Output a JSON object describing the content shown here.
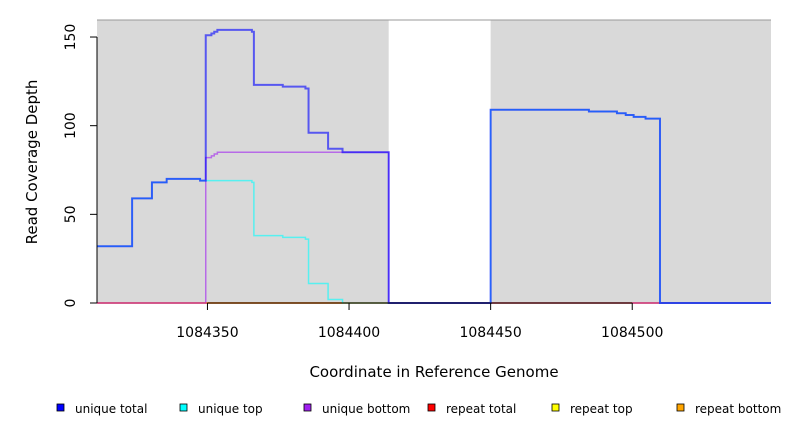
{
  "chart_data": {
    "type": "line",
    "step": true,
    "title": "",
    "xlabel": "Coordinate in Reference Genome",
    "ylabel": "Read Coverage Depth",
    "xlim": [
      1084311,
      1084549
    ],
    "ylim": [
      0,
      159.6
    ],
    "xticks": [
      1084350,
      1084400,
      1084450,
      1084500
    ],
    "yticks": [
      0,
      50,
      100,
      150
    ],
    "shaded_regions": [
      [
        1084311,
        1084414
      ],
      [
        1084450,
        1084549
      ]
    ],
    "shade_color": "#d9d9d9",
    "legend_position": "bottom",
    "series": [
      {
        "name": "unique total",
        "color": "#0000ff",
        "x": [
          1084311,
          1084323.4,
          1084330.4,
          1084335.6,
          1084347.4,
          1084349.4,
          1084351.4,
          1084352.4,
          1084353.5,
          1084365.7,
          1084366.4,
          1084376.6,
          1084384.6,
          1084385.7,
          1084392.6,
          1084397.7,
          1084414,
          1084450,
          1084484.7,
          1084494.6,
          1084497.7,
          1084500.5,
          1084504.7,
          1084509.8
        ],
        "y": [
          32,
          59,
          68,
          70,
          69,
          151,
          152,
          153,
          154,
          153,
          123,
          122,
          121,
          96,
          87,
          85,
          0,
          109,
          108,
          107,
          106,
          105,
          104,
          0
        ],
        "x_end": 1084549
      },
      {
        "name": "unique top",
        "color": "#00ffff",
        "x": [
          1084311,
          1084323.4,
          1084330.4,
          1084335.6,
          1084347.4,
          1084365.7,
          1084366.4,
          1084376.6,
          1084384.6,
          1084385.7,
          1084392.6,
          1084397.7,
          1084450,
          1084484.7,
          1084494.6,
          1084497.7,
          1084500.5,
          1084504.7,
          1084509.8
        ],
        "y": [
          32,
          59,
          68,
          70,
          69,
          68,
          38,
          37,
          36,
          11,
          2,
          0,
          109,
          108,
          107,
          106,
          105,
          104,
          0
        ],
        "x_end": 1084549
      },
      {
        "name": "unique bottom",
        "color": "#a020f0",
        "x": [
          1084311,
          1084349.4,
          1084351.4,
          1084352.4,
          1084353.5,
          1084414
        ],
        "y": [
          0,
          82,
          83,
          84,
          85,
          0
        ],
        "x_end": 1084549
      },
      {
        "name": "repeat total",
        "color": "#ff0000",
        "x": [
          1084311
        ],
        "y": [
          0
        ],
        "x_end": 1084549
      },
      {
        "name": "repeat top",
        "color": "#ffff00",
        "x": [
          1084311
        ],
        "y": [
          0
        ],
        "x_end": 1084549
      },
      {
        "name": "repeat bottom",
        "color": "#ffa500",
        "x": [
          1084311
        ],
        "y": [
          0
        ],
        "x_end": 1084549
      }
    ]
  }
}
